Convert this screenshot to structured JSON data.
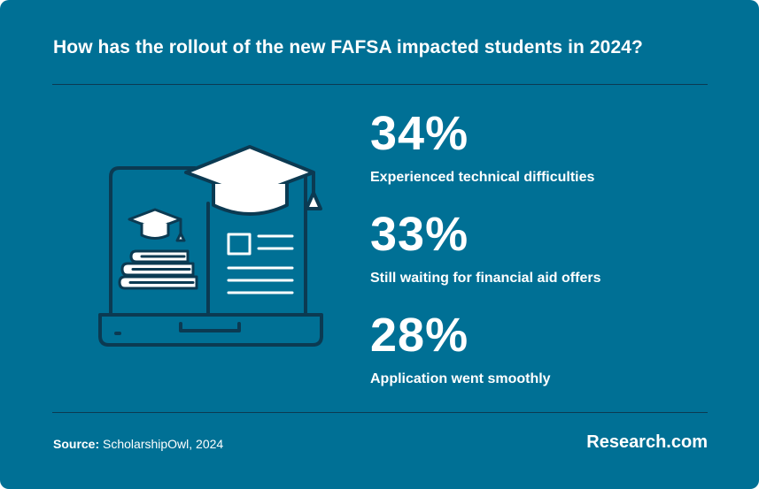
{
  "title": "How has the rollout of the new FAFSA impacted students in 2024?",
  "colors": {
    "background": "#007095",
    "line": "#0b3a52",
    "text": "#ffffff"
  },
  "illustration": {
    "icon": "laptop-graduation-cap-books-icon"
  },
  "stats": [
    {
      "value": "34%",
      "label": "Experienced technical difficulties"
    },
    {
      "value": "33%",
      "label": "Still waiting for financial aid offers"
    },
    {
      "value": "28%",
      "label": "Application went smoothly"
    }
  ],
  "footer": {
    "source_key": "Source:",
    "source_value": " ScholarshipOwl, 2024",
    "brand": "Research.com"
  }
}
